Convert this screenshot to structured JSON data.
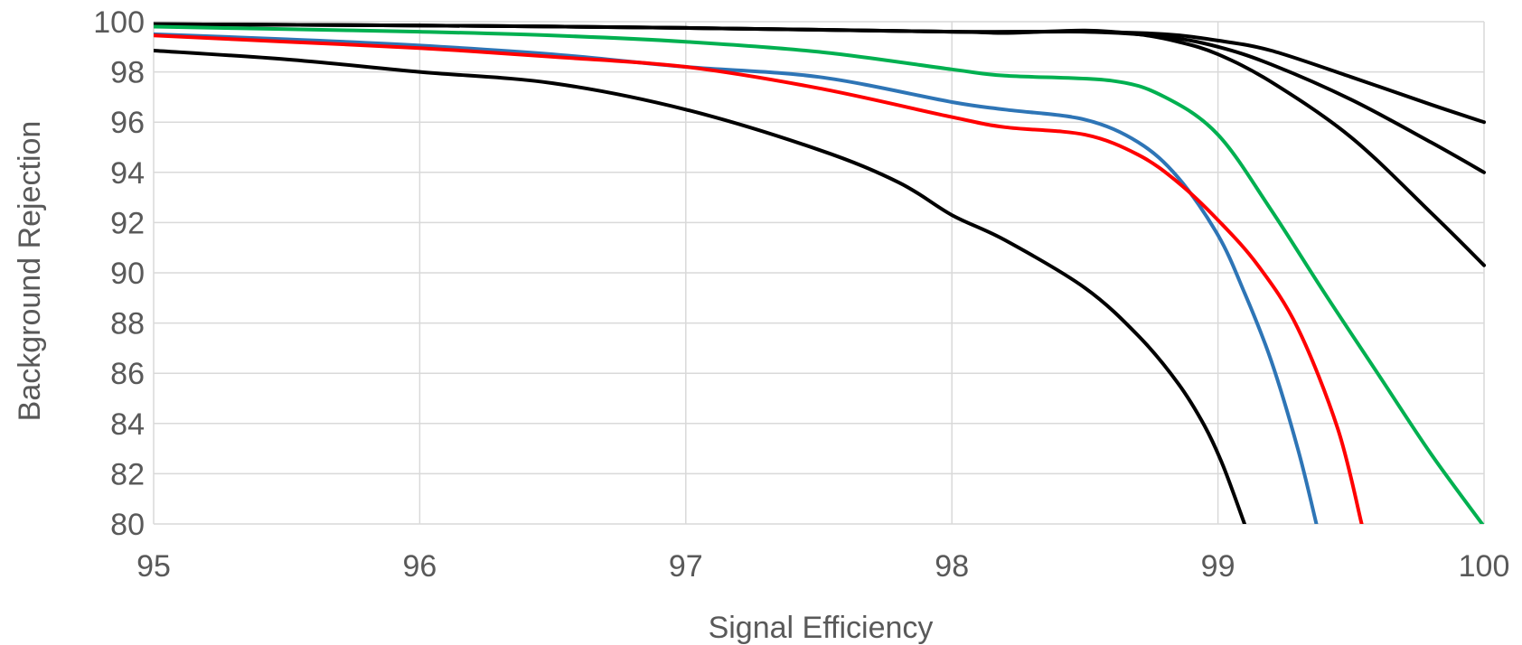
{
  "chart_data": {
    "type": "line",
    "xlabel": "Signal Efficiency",
    "ylabel": "Background Rejection",
    "xlim": [
      95,
      100
    ],
    "ylim": [
      80,
      100
    ],
    "xticks": [
      "95",
      "96",
      "97",
      "98",
      "99",
      "100"
    ],
    "yticks": [
      "80",
      "82",
      "84",
      "86",
      "88",
      "90",
      "92",
      "94",
      "96",
      "98",
      "100"
    ],
    "grid": true,
    "legend": "none",
    "series": [
      {
        "color": "#000000",
        "points": [
          [
            95,
            99.9
          ],
          [
            96,
            99.85
          ],
          [
            97,
            99.75
          ],
          [
            98,
            99.6
          ],
          [
            98.5,
            99.6
          ],
          [
            98.8,
            99.5
          ],
          [
            99.0,
            99.25
          ],
          [
            99.2,
            98.85
          ],
          [
            99.5,
            97.8
          ],
          [
            99.8,
            96.7
          ],
          [
            100,
            96.0
          ]
        ]
      },
      {
        "color": "#000000",
        "points": [
          [
            95,
            99.9
          ],
          [
            96,
            99.85
          ],
          [
            97,
            99.75
          ],
          [
            98,
            99.6
          ],
          [
            98.5,
            99.6
          ],
          [
            98.8,
            99.4
          ],
          [
            99.0,
            99.0
          ],
          [
            99.2,
            98.3
          ],
          [
            99.5,
            96.9
          ],
          [
            99.8,
            95.2
          ],
          [
            100,
            94.0
          ]
        ]
      },
      {
        "color": "#000000",
        "points": [
          [
            95,
            99.9
          ],
          [
            96,
            99.85
          ],
          [
            97,
            99.75
          ],
          [
            98,
            99.6
          ],
          [
            98.2,
            99.55
          ],
          [
            98.5,
            99.65
          ],
          [
            98.7,
            99.5
          ],
          [
            98.85,
            99.2
          ],
          [
            99.0,
            98.7
          ],
          [
            99.2,
            97.6
          ],
          [
            99.5,
            95.4
          ],
          [
            99.8,
            92.4
          ],
          [
            100,
            90.3
          ]
        ]
      },
      {
        "color": "#00b050",
        "points": [
          [
            95,
            99.8
          ],
          [
            95.5,
            99.7
          ],
          [
            96,
            99.6
          ],
          [
            96.5,
            99.45
          ],
          [
            97,
            99.2
          ],
          [
            97.5,
            98.8
          ],
          [
            98,
            98.1
          ],
          [
            98.2,
            97.85
          ],
          [
            98.6,
            97.65
          ],
          [
            98.8,
            97.0
          ],
          [
            99.0,
            95.5
          ],
          [
            99.2,
            92.5
          ],
          [
            99.4,
            89.2
          ],
          [
            99.6,
            86.0
          ],
          [
            99.8,
            82.8
          ],
          [
            100,
            79.9
          ]
        ]
      },
      {
        "color": "#2e75b6",
        "points": [
          [
            95,
            99.5
          ],
          [
            95.5,
            99.3
          ],
          [
            96,
            99.05
          ],
          [
            96.5,
            98.7
          ],
          [
            97,
            98.2
          ],
          [
            97.5,
            97.8
          ],
          [
            98,
            96.8
          ],
          [
            98.2,
            96.5
          ],
          [
            98.5,
            96.1
          ],
          [
            98.7,
            95.2
          ],
          [
            98.85,
            93.8
          ],
          [
            99.0,
            91.5
          ],
          [
            99.1,
            89.2
          ],
          [
            99.2,
            86.5
          ],
          [
            99.3,
            83.0
          ],
          [
            99.37,
            80.0
          ]
        ]
      },
      {
        "color": "#ff0000",
        "points": [
          [
            95,
            99.45
          ],
          [
            95.5,
            99.2
          ],
          [
            96,
            98.95
          ],
          [
            96.5,
            98.6
          ],
          [
            97,
            98.2
          ],
          [
            97.5,
            97.35
          ],
          [
            98,
            96.2
          ],
          [
            98.2,
            95.8
          ],
          [
            98.5,
            95.5
          ],
          [
            98.7,
            94.7
          ],
          [
            98.85,
            93.6
          ],
          [
            99.0,
            92.1
          ],
          [
            99.15,
            90.3
          ],
          [
            99.3,
            87.8
          ],
          [
            99.45,
            83.8
          ],
          [
            99.54,
            80.0
          ]
        ]
      },
      {
        "color": "#000000",
        "points": [
          [
            95,
            98.85
          ],
          [
            95.5,
            98.5
          ],
          [
            96,
            98.0
          ],
          [
            96.5,
            97.55
          ],
          [
            97,
            96.5
          ],
          [
            97.5,
            94.9
          ],
          [
            97.8,
            93.6
          ],
          [
            98.0,
            92.3
          ],
          [
            98.2,
            91.3
          ],
          [
            98.5,
            89.4
          ],
          [
            98.7,
            87.5
          ],
          [
            98.85,
            85.6
          ],
          [
            98.95,
            83.9
          ],
          [
            99.02,
            82.3
          ],
          [
            99.1,
            80.0
          ]
        ]
      }
    ]
  }
}
